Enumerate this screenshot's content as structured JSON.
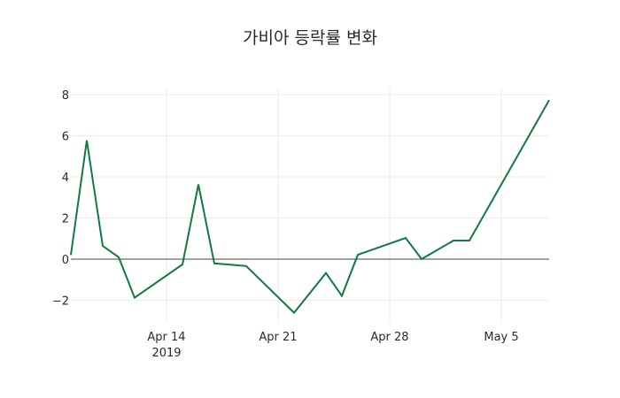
{
  "chart_data": {
    "type": "line",
    "title": "가비아 등락률 변화",
    "xlabel": "",
    "ylabel": "",
    "x": [
      "2019-04-08",
      "2019-04-09",
      "2019-04-10",
      "2019-04-11",
      "2019-04-12",
      "2019-04-15",
      "2019-04-16",
      "2019-04-17",
      "2019-04-19",
      "2019-04-22",
      "2019-04-24",
      "2019-04-25",
      "2019-04-26",
      "2019-04-29",
      "2019-04-30",
      "2019-05-02",
      "2019-05-03",
      "2019-05-08"
    ],
    "series": [
      {
        "name": "등락률",
        "color": "#0f7b3e",
        "values": [
          0.2,
          5.77,
          0.64,
          0.09,
          -1.88,
          -0.26,
          3.63,
          -0.21,
          -0.34,
          -2.61,
          -0.68,
          -1.79,
          0.21,
          1.03,
          0.0,
          0.9,
          0.9,
          7.73
        ]
      }
    ],
    "x_ticks": [
      {
        "date": "2019-04-14",
        "label": "Apr 14",
        "sublabel": "2019"
      },
      {
        "date": "2019-04-21",
        "label": "Apr 21",
        "sublabel": ""
      },
      {
        "date": "2019-04-28",
        "label": "Apr 28",
        "sublabel": ""
      },
      {
        "date": "2019-05-05",
        "label": "May 5",
        "sublabel": ""
      }
    ],
    "y_ticks": [
      8,
      6,
      4,
      2,
      0,
      -2
    ],
    "y_tick_labels": [
      "8",
      "6",
      "4",
      "2",
      "0",
      "−2"
    ],
    "ylim": [
      -3.1,
      8.3
    ],
    "xlim": [
      "2019-04-08",
      "2019-05-08"
    ],
    "grid": true,
    "zeroline": true,
    "legend": false
  }
}
